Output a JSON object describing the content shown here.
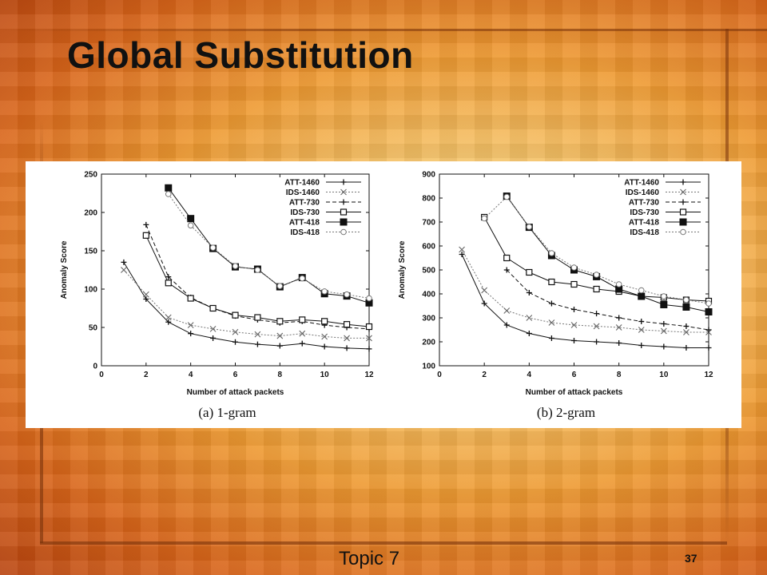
{
  "slide": {
    "title": "Global Substitution",
    "footer": "Topic 7",
    "page_number": "37"
  },
  "chart_data": [
    {
      "type": "line",
      "caption": "(a) 1-gram",
      "xlabel": "Number of attack packets",
      "ylabel": "Anomaly Score",
      "xlim": [
        0,
        12
      ],
      "ylim": [
        0,
        250
      ],
      "xticks": [
        0,
        2,
        4,
        6,
        8,
        10,
        12
      ],
      "yticks": [
        0,
        50,
        100,
        150,
        200,
        250
      ],
      "grid": false,
      "legend_position": "top-right",
      "series": [
        {
          "name": "ATT-1460",
          "marker": "plus",
          "style": "solid",
          "x": [
            1,
            2,
            3,
            4,
            5,
            6,
            7,
            8,
            9,
            10,
            11,
            12
          ],
          "values": [
            135,
            87,
            57,
            42,
            36,
            31,
            28,
            26,
            29,
            25,
            23,
            22
          ]
        },
        {
          "name": "IDS-1460",
          "marker": "cross",
          "style": "dotted",
          "x": [
            1,
            2,
            3,
            4,
            5,
            6,
            7,
            8,
            9,
            10,
            11,
            12
          ],
          "values": [
            125,
            93,
            63,
            53,
            48,
            44,
            41,
            39,
            42,
            38,
            36,
            36
          ]
        },
        {
          "name": "ATT-730",
          "marker": "plus",
          "style": "dashed",
          "x": [
            2,
            3,
            4,
            5,
            6,
            7,
            8,
            9,
            10,
            11,
            12
          ],
          "values": [
            184,
            116,
            89,
            75,
            65,
            60,
            56,
            58,
            53,
            50,
            48
          ]
        },
        {
          "name": "IDS-730",
          "marker": "open-square",
          "style": "solid",
          "x": [
            2,
            3,
            4,
            5,
            6,
            7,
            8,
            9,
            10,
            11,
            12
          ],
          "values": [
            170,
            108,
            88,
            75,
            66,
            63,
            58,
            60,
            58,
            54,
            51
          ]
        },
        {
          "name": "ATT-418",
          "marker": "filled-square",
          "style": "solid",
          "x": [
            3,
            4,
            5,
            6,
            7,
            8,
            9,
            10,
            11,
            12
          ],
          "values": [
            232,
            192,
            153,
            129,
            126,
            103,
            115,
            94,
            91,
            82
          ]
        },
        {
          "name": "IDS-418",
          "marker": "open-circle",
          "style": "dotted",
          "x": [
            3,
            4,
            5,
            6,
            7,
            8,
            9,
            10,
            11,
            12
          ],
          "values": [
            224,
            183,
            154,
            130,
            125,
            104,
            114,
            97,
            93,
            88
          ]
        }
      ]
    },
    {
      "type": "line",
      "caption": "(b) 2-gram",
      "xlabel": "Number of attack packets",
      "ylabel": "Anomaly Score",
      "xlim": [
        0,
        12
      ],
      "ylim": [
        100,
        900
      ],
      "xticks": [
        0,
        2,
        4,
        6,
        8,
        10,
        12
      ],
      "yticks": [
        100,
        200,
        300,
        400,
        500,
        600,
        700,
        800,
        900
      ],
      "grid": false,
      "legend_position": "top-right",
      "series": [
        {
          "name": "ATT-1460",
          "marker": "plus",
          "style": "solid",
          "x": [
            1,
            2,
            3,
            4,
            5,
            6,
            7,
            8,
            9,
            10,
            11,
            12
          ],
          "values": [
            565,
            360,
            270,
            235,
            215,
            205,
            200,
            195,
            185,
            180,
            175,
            175
          ]
        },
        {
          "name": "IDS-1460",
          "marker": "cross",
          "style": "dotted",
          "x": [
            1,
            2,
            3,
            4,
            5,
            6,
            7,
            8,
            9,
            10,
            11,
            12
          ],
          "values": [
            585,
            415,
            330,
            300,
            280,
            270,
            265,
            260,
            250,
            245,
            240,
            240
          ]
        },
        {
          "name": "ATT-730",
          "marker": "plus",
          "style": "dashed",
          "x": [
            3,
            4,
            5,
            6,
            7,
            8,
            9,
            10,
            11,
            12
          ],
          "values": [
            500,
            405,
            360,
            335,
            318,
            300,
            285,
            275,
            265,
            250
          ]
        },
        {
          "name": "IDS-730",
          "marker": "open-square",
          "style": "solid",
          "x": [
            2,
            3,
            4,
            5,
            6,
            7,
            8,
            9,
            10,
            11,
            12
          ],
          "values": [
            720,
            550,
            490,
            450,
            440,
            420,
            410,
            390,
            385,
            375,
            370
          ]
        },
        {
          "name": "ATT-418",
          "marker": "filled-square",
          "style": "solid",
          "x": [
            3,
            4,
            5,
            6,
            7,
            8,
            9,
            10,
            11,
            12
          ],
          "values": [
            808,
            678,
            560,
            500,
            472,
            420,
            390,
            355,
            345,
            325
          ]
        },
        {
          "name": "IDS-418",
          "marker": "open-circle",
          "style": "dotted",
          "x": [
            2,
            3,
            4,
            5,
            6,
            7,
            8,
            9,
            10,
            11,
            12
          ],
          "values": [
            715,
            805,
            680,
            570,
            510,
            480,
            440,
            415,
            390,
            375,
            360
          ]
        }
      ]
    }
  ]
}
